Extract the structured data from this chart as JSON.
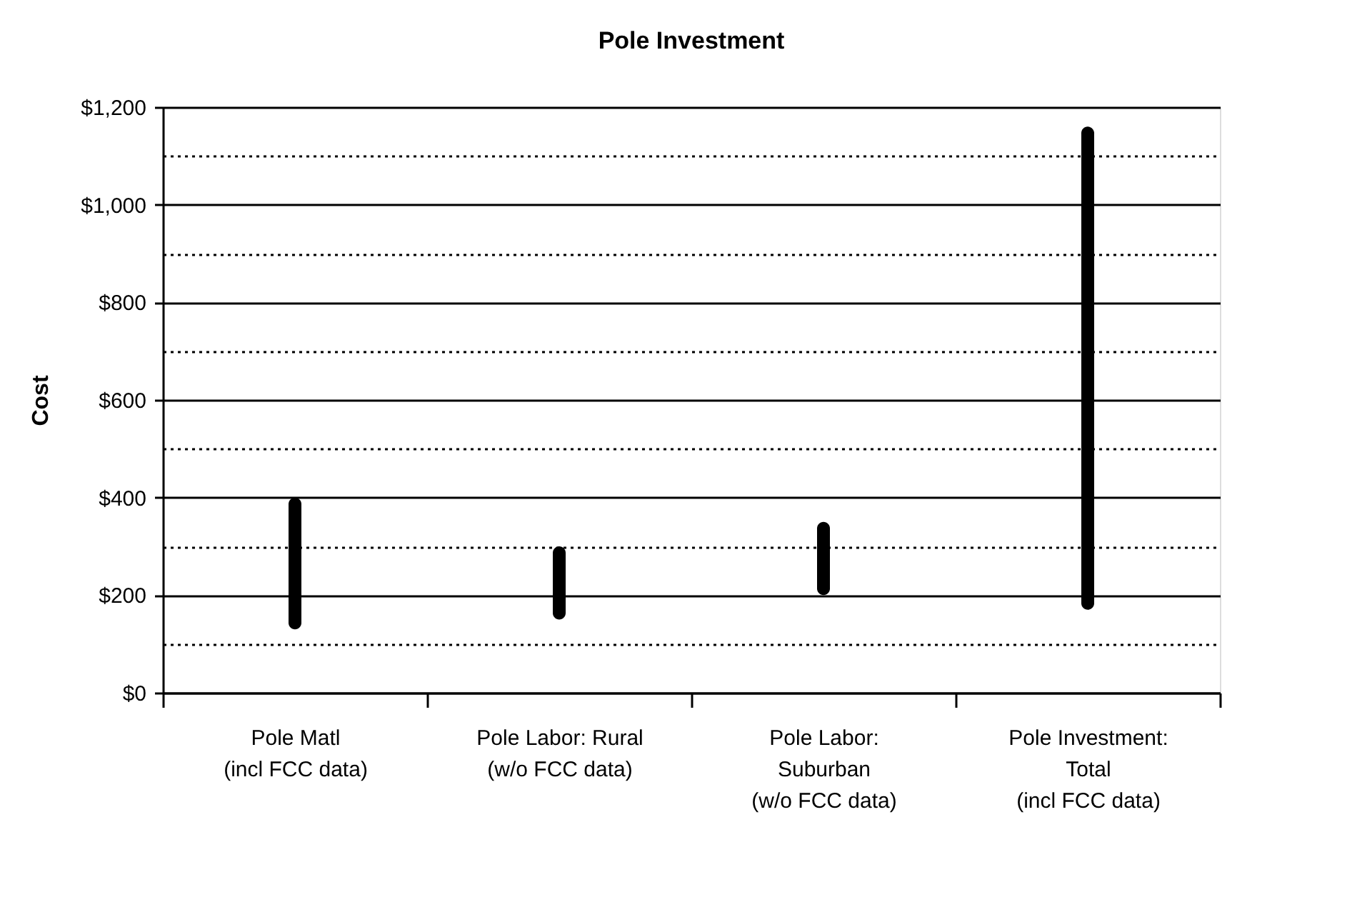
{
  "chart_data": {
    "type": "bar",
    "title": "Pole Investment",
    "ylabel": "Cost",
    "categories": [
      "Pole Matl\n(incl FCC data)",
      "Pole Labor: Rural\n(w/o FCC data)",
      "Pole Labor:\nSuburban\n(w/o FCC data)",
      "Pole Investment:\nTotal\n(incl FCC data)"
    ],
    "base": [
      130,
      150,
      200,
      170
    ],
    "values": [
      270,
      150,
      150,
      990
    ],
    "color": "#000000",
    "ylim": [
      0,
      1200
    ],
    "yticks": [
      {
        "value": 0,
        "label": "$0"
      },
      {
        "value": 100,
        "label": null
      },
      {
        "value": 200,
        "label": "$200"
      },
      {
        "value": 300,
        "label": null
      },
      {
        "value": 400,
        "label": "$400"
      },
      {
        "value": 500,
        "label": null
      },
      {
        "value": 600,
        "label": "$600"
      },
      {
        "value": 700,
        "label": null
      },
      {
        "value": 800,
        "label": "$800"
      },
      {
        "value": 900,
        "label": null
      },
      {
        "value": 1000,
        "label": "$1,000"
      },
      {
        "value": 1100,
        "label": null
      },
      {
        "value": 1200,
        "label": "$1,200"
      }
    ],
    "grid": "y"
  }
}
